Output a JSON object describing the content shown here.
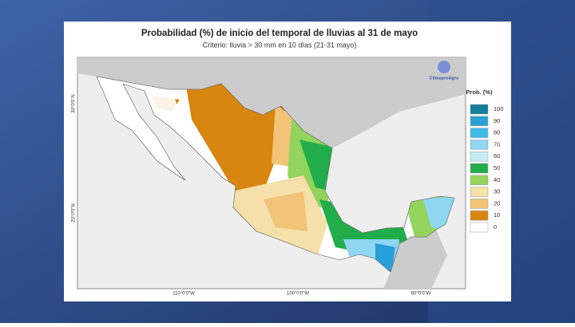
{
  "title": "Probabilidad (%) de inicio del temporal de lluvias al 31 de mayo",
  "subtitle": "Criterio: lluvia > 30 mm en 10 días (21-31 mayo)",
  "logo": "ClimaproAgro",
  "legend": {
    "title": "Prob. (%)",
    "items": [
      {
        "label": "100",
        "color": "#117f99"
      },
      {
        "label": "90",
        "color": "#2aa0d8"
      },
      {
        "label": "80",
        "color": "#3fbbe9"
      },
      {
        "label": "70",
        "color": "#8fd6f2"
      },
      {
        "label": "60",
        "color": "#c6ebf4"
      },
      {
        "label": "50",
        "color": "#22ad4b"
      },
      {
        "label": "40",
        "color": "#92d45c"
      },
      {
        "label": "30",
        "color": "#f5e0aa"
      },
      {
        "label": "20",
        "color": "#f1c478"
      },
      {
        "label": "10",
        "color": "#d8860f"
      },
      {
        "label": "0",
        "color": "#ffffff"
      }
    ]
  },
  "axes": {
    "lat": [
      "30°0'0\"N",
      "20°0'0\"N"
    ],
    "lon": [
      "110°0'0\"W",
      "100°0'0\"W",
      "90°0'0\"W"
    ]
  }
}
